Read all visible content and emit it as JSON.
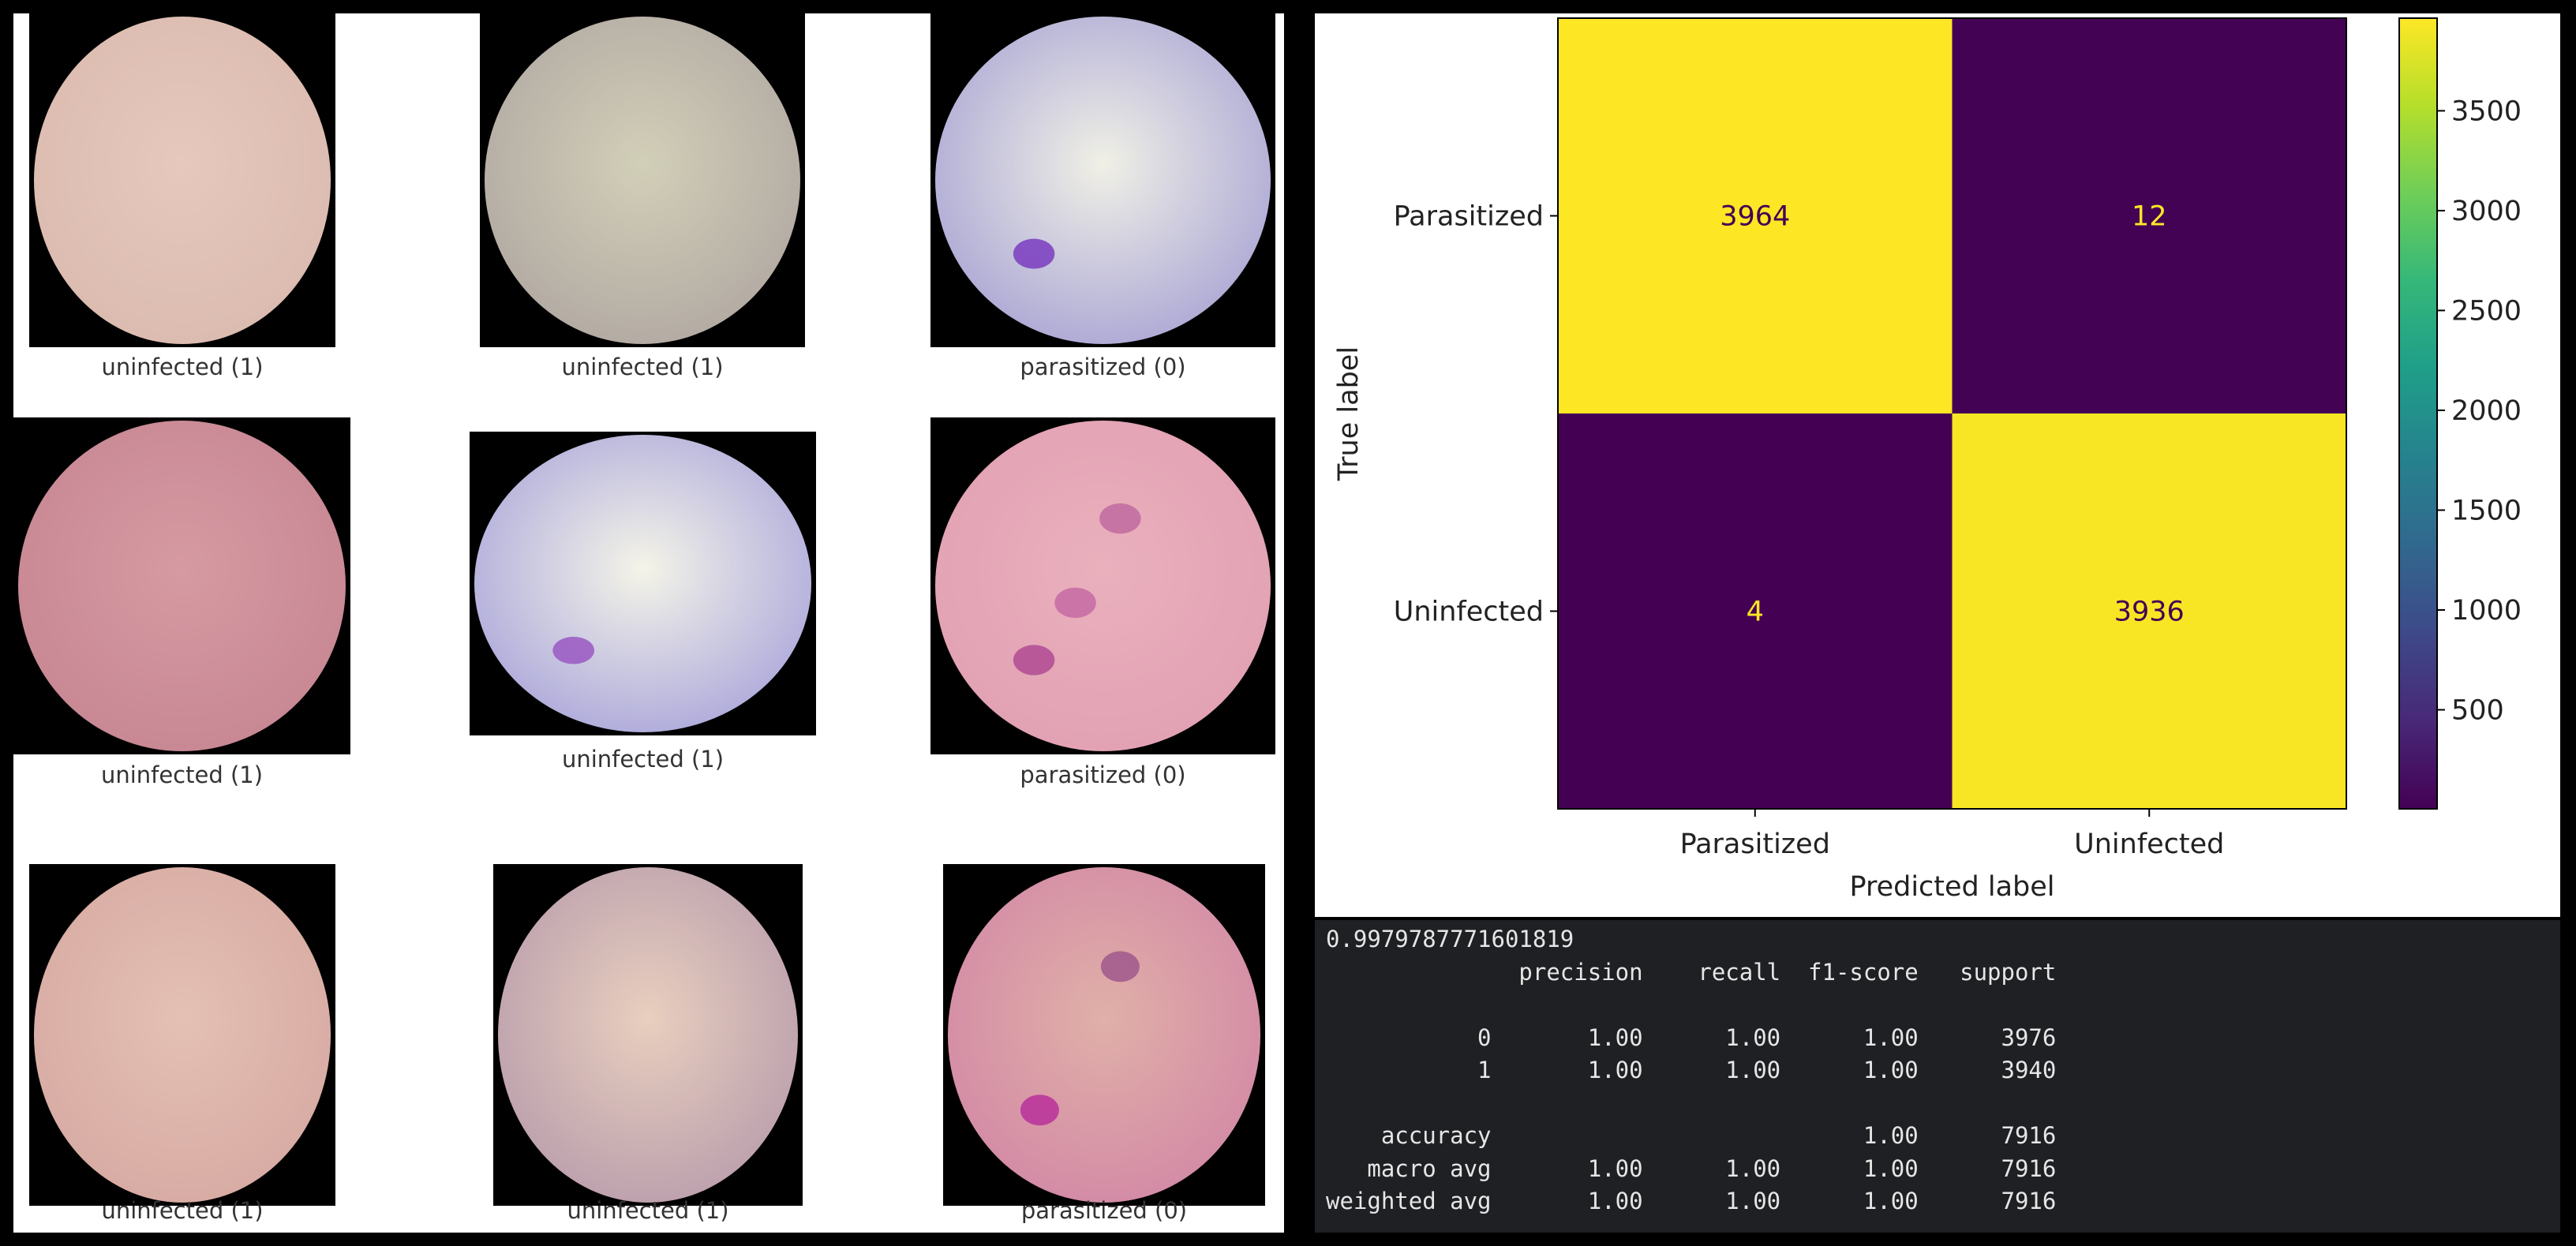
{
  "samples": [
    {
      "label": "uninfected (1)",
      "base": "#dcbcb0",
      "center": "#e6c8bc",
      "spots": []
    },
    {
      "label": "uninfected (1)",
      "base": "#b4aca4",
      "center": "#d2cfb8",
      "spots": []
    },
    {
      "label": "parasitized (0)",
      "base": "#b0acd6",
      "center": "#f0f0e6",
      "spots": [
        "#7a3cc0"
      ]
    },
    {
      "label": "uninfected (1)",
      "base": "#c88894",
      "center": "#d69aa2",
      "spots": []
    },
    {
      "label": "uninfected (1)",
      "base": "#b2aedc",
      "center": "#f4f4e8",
      "spots": [
        "#9a58c2"
      ]
    },
    {
      "label": "parasitized (0)",
      "base": "#e2a2b4",
      "center": "#eab0bc",
      "spots": [
        "#b04a94",
        "#c06aa0",
        "#c46aa4"
      ]
    },
    {
      "label": "uninfected (1)",
      "base": "#d8aca4",
      "center": "#e4c0b4",
      "spots": []
    },
    {
      "label": "uninfected (1)",
      "base": "#bea2ae",
      "center": "#e8cfbe",
      "spots": []
    },
    {
      "label": "parasitized (0)",
      "base": "#d48ca6",
      "center": "#e0b0a8",
      "spots": [
        "#b8309a",
        "#a0588c"
      ]
    }
  ],
  "chart_data": {
    "type": "heatmap",
    "title": "",
    "xlabel": "Predicted label",
    "ylabel": "True label",
    "x_categories": [
      "Parasitized",
      "Uninfected"
    ],
    "y_categories": [
      "Parasitized",
      "Uninfected"
    ],
    "values": [
      [
        3964,
        12
      ],
      [
        4,
        3936
      ]
    ],
    "colormap": "viridis",
    "colorbar": {
      "range": [
        4,
        3964
      ],
      "ticks": [
        500,
        1000,
        1500,
        2000,
        2500,
        3000,
        3500
      ]
    },
    "annotation_colors": {
      "on_low": "#fde725",
      "on_high": "#440154"
    }
  },
  "report": {
    "accuracy_value": "0.9979787771601819",
    "headers": [
      "",
      "precision",
      "recall",
      "f1-score",
      "support"
    ],
    "rows": [
      [
        "0",
        "1.00",
        "1.00",
        "1.00",
        "3976"
      ],
      [
        "1",
        "1.00",
        "1.00",
        "1.00",
        "3940"
      ],
      null,
      [
        "accuracy",
        "",
        "",
        "1.00",
        "7916"
      ],
      [
        "macro avg",
        "1.00",
        "1.00",
        "1.00",
        "7916"
      ],
      [
        "weighted avg",
        "1.00",
        "1.00",
        "1.00",
        "7916"
      ]
    ]
  }
}
